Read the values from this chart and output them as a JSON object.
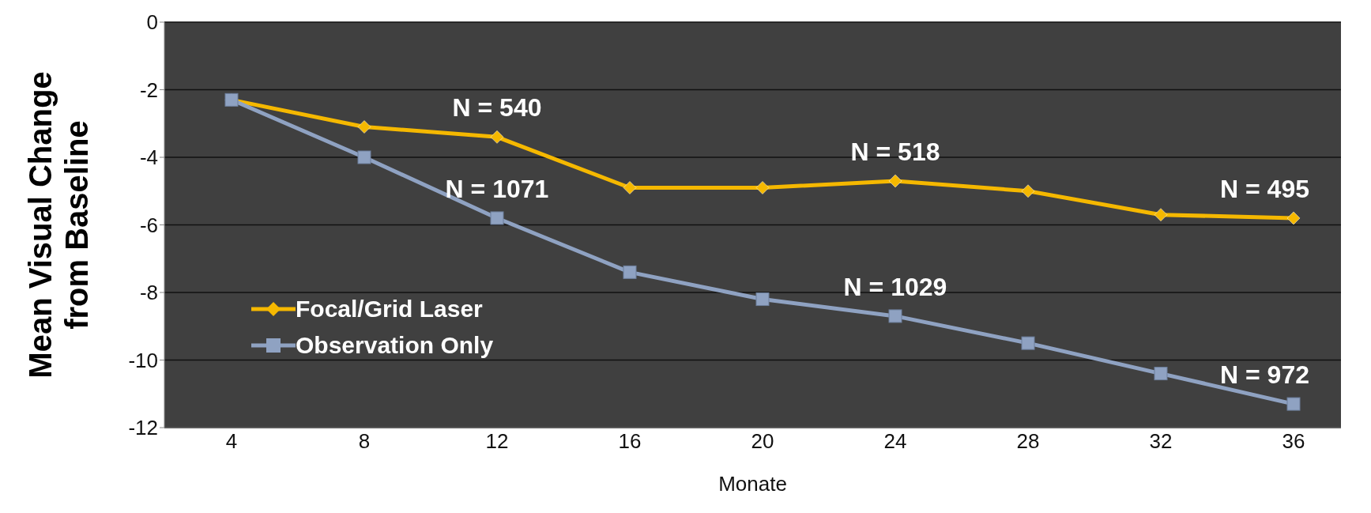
{
  "chart_data": {
    "type": "line",
    "xlabel": "Monate",
    "ylabel": "Mean Visual Change from Baseline",
    "categories": [
      "4",
      "8",
      "12",
      "16",
      "20",
      "24",
      "28",
      "32",
      "36"
    ],
    "series": [
      {
        "name": "Focal/Grid Laser",
        "color": "#f5b800",
        "marker": "diamond",
        "values": [
          -2.3,
          -3.1,
          -3.4,
          -4.9,
          -4.9,
          -4.7,
          -5.0,
          -5.7,
          -5.8
        ]
      },
      {
        "name": "Observation Only",
        "color": "#8fa2c2",
        "marker": "square",
        "values": [
          -2.3,
          -4.0,
          -5.8,
          -7.4,
          -8.2,
          -8.7,
          -9.5,
          -10.4,
          -11.3
        ]
      }
    ],
    "ylim": [
      -12,
      0
    ],
    "yticks": [
      -12,
      -10,
      -8,
      -6,
      -4,
      -2,
      0
    ],
    "grid": "y",
    "legend": "bottom left",
    "annotations": [
      {
        "text": "N = 540",
        "x": "12",
        "y": -3.4
      },
      {
        "text": "N = 1071",
        "x": "12",
        "y": -5.8
      },
      {
        "text": "N = 518",
        "x": "24",
        "y": -4.7
      },
      {
        "text": "N = 1029",
        "x": "24",
        "y": -8.7
      },
      {
        "text": "N = 495",
        "x": "36",
        "y": -5.8
      },
      {
        "text": "N = 972",
        "x": "36",
        "y": -11.3
      }
    ]
  }
}
